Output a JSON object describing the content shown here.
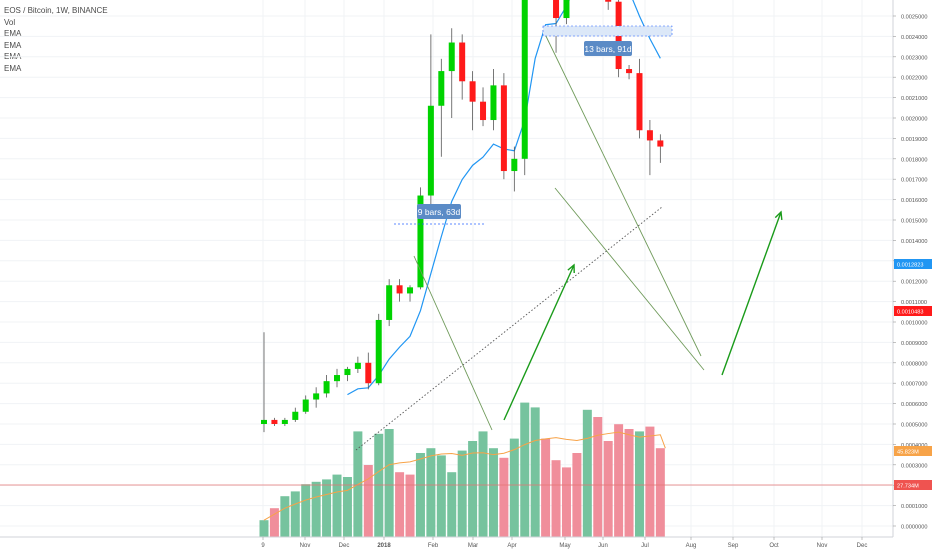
{
  "legend": {
    "title": "EOS / Bitcoin, 1W, BINANCE",
    "vol": "Vol",
    "ema": [
      "EMA",
      "EMA",
      "EMA",
      "EMA"
    ]
  },
  "colors": {
    "up": "#00d300",
    "down": "#ff1a1a",
    "vol_up": "#76c39e",
    "vol_down": "#f08e9b",
    "ema_blue": "#2196f3",
    "ema_orange": "#f7a348",
    "trend_green": "#1a9b1a",
    "trend_line": "#6f9a5a",
    "measure_blue": "#2962ff"
  },
  "axis": {
    "price_ticks": [
      "0.0025000",
      "0.0024000",
      "0.0023000",
      "0.0022000",
      "0.0021000",
      "0.0020000",
      "0.0019000",
      "0.0018000",
      "0.0017000",
      "0.0016000",
      "0.0015000",
      "0.0014000",
      "0.0013000",
      "0.0012000",
      "0.0011000",
      "0.0010000",
      "0.0009000",
      "0.0008000",
      "0.0007000",
      "0.0006000",
      "0.0005000",
      "0.0004000",
      "0.0003000",
      "0.0002000",
      "0.0001000",
      "0.0000000"
    ],
    "time_ticks": [
      "9",
      "Nov",
      "Dec",
      "2018",
      "Feb",
      "Mar",
      "Apr",
      "May",
      "Jun",
      "Jul",
      "Aug",
      "Sep",
      "Oct",
      "Nov",
      "Dec"
    ],
    "price_label_blue": "0.0012823",
    "price_label_red": "0.0010483",
    "vol_label_orange": "45.823M",
    "vol_label_red": "27.734M"
  },
  "annotations": {
    "measure_1": "9 bars, 63d",
    "measure_2": "13 bars, 91d"
  },
  "chart_data": {
    "type": "candlestick",
    "title": "EOS / Bitcoin, 1W, BINANCE",
    "candles": [
      {
        "o": 0.0005,
        "h": 0.00095,
        "l": 0.00046,
        "c": 0.00052
      },
      {
        "o": 0.00052,
        "h": 0.00053,
        "l": 0.00049,
        "c": 0.0005
      },
      {
        "o": 0.0005,
        "h": 0.00053,
        "l": 0.00049,
        "c": 0.00052
      },
      {
        "o": 0.00052,
        "h": 0.00058,
        "l": 0.00051,
        "c": 0.00056
      },
      {
        "o": 0.00056,
        "h": 0.00064,
        "l": 0.00055,
        "c": 0.00062
      },
      {
        "o": 0.00062,
        "h": 0.00068,
        "l": 0.00058,
        "c": 0.00065
      },
      {
        "o": 0.00065,
        "h": 0.00074,
        "l": 0.00063,
        "c": 0.00071
      },
      {
        "o": 0.00071,
        "h": 0.00077,
        "l": 0.00068,
        "c": 0.00074
      },
      {
        "o": 0.00074,
        "h": 0.00078,
        "l": 0.00071,
        "c": 0.00077
      },
      {
        "o": 0.00077,
        "h": 0.00083,
        "l": 0.00075,
        "c": 0.0008
      },
      {
        "o": 0.0008,
        "h": 0.00085,
        "l": 0.00067,
        "c": 0.0007
      },
      {
        "o": 0.0007,
        "h": 0.00104,
        "l": 0.00069,
        "c": 0.00101
      },
      {
        "o": 0.00101,
        "h": 0.00121,
        "l": 0.00098,
        "c": 0.00118
      },
      {
        "o": 0.00118,
        "h": 0.00121,
        "l": 0.0011,
        "c": 0.00114
      },
      {
        "o": 0.00114,
        "h": 0.00118,
        "l": 0.0011,
        "c": 0.00117
      },
      {
        "o": 0.00117,
        "h": 0.00166,
        "l": 0.00116,
        "c": 0.00162
      },
      {
        "o": 0.00162,
        "h": 0.00241,
        "l": 0.00152,
        "c": 0.00206
      },
      {
        "o": 0.00206,
        "h": 0.00229,
        "l": 0.00181,
        "c": 0.00223
      },
      {
        "o": 0.00223,
        "h": 0.00244,
        "l": 0.002,
        "c": 0.00237
      },
      {
        "o": 0.00237,
        "h": 0.00241,
        "l": 0.00209,
        "c": 0.00218
      },
      {
        "o": 0.00218,
        "h": 0.00223,
        "l": 0.00194,
        "c": 0.00208
      },
      {
        "o": 0.00208,
        "h": 0.00215,
        "l": 0.00196,
        "c": 0.00199
      },
      {
        "o": 0.00199,
        "h": 0.00224,
        "l": 0.00194,
        "c": 0.00216
      },
      {
        "o": 0.00216,
        "h": 0.00222,
        "l": 0.0017,
        "c": 0.00174
      },
      {
        "o": 0.00174,
        "h": 0.00186,
        "l": 0.00164,
        "c": 0.0018
      },
      {
        "o": 0.0018,
        "h": 0.00271,
        "l": 0.00172,
        "c": 0.00267
      },
      {
        "o": 0.00267,
        "h": 0.00373,
        "l": 0.00262,
        "c": 0.00365
      },
      {
        "o": 0.00365,
        "h": 0.00394,
        "l": 0.0031,
        "c": 0.0032
      },
      {
        "o": 0.0032,
        "h": 0.00326,
        "l": 0.00232,
        "c": 0.00249
      },
      {
        "o": 0.00249,
        "h": 0.00322,
        "l": 0.00246,
        "c": 0.00293
      },
      {
        "o": 0.00293,
        "h": 0.00331,
        "l": 0.00276,
        "c": 0.00318
      },
      {
        "o": 0.00318,
        "h": 0.00367,
        "l": 0.00305,
        "c": 0.00351
      },
      {
        "o": 0.00351,
        "h": 0.00354,
        "l": 0.00304,
        "c": 0.00313
      },
      {
        "o": 0.00313,
        "h": 0.00334,
        "l": 0.00253,
        "c": 0.00257
      },
      {
        "o": 0.00257,
        "h": 0.00266,
        "l": 0.0022,
        "c": 0.00224
      },
      {
        "o": 0.00224,
        "h": 0.00226,
        "l": 0.00219,
        "c": 0.00222
      },
      {
        "o": 0.00222,
        "h": 0.00229,
        "l": 0.0019,
        "c": 0.00194
      },
      {
        "o": 0.00194,
        "h": 0.00199,
        "l": 0.00172,
        "c": 0.00189
      },
      {
        "o": 0.00189,
        "h": 0.00192,
        "l": 0.00178,
        "c": 0.00186
      }
    ],
    "volume": [
      {
        "v": 7,
        "up": true
      },
      {
        "v": 12,
        "up": false
      },
      {
        "v": 17,
        "up": true
      },
      {
        "v": 19,
        "up": true
      },
      {
        "v": 22,
        "up": true
      },
      {
        "v": 23,
        "up": true
      },
      {
        "v": 24,
        "up": true
      },
      {
        "v": 26,
        "up": true
      },
      {
        "v": 25,
        "up": true
      },
      {
        "v": 44,
        "up": true
      },
      {
        "v": 30,
        "up": false
      },
      {
        "v": 43,
        "up": true
      },
      {
        "v": 45,
        "up": true
      },
      {
        "v": 27,
        "up": false
      },
      {
        "v": 26,
        "up": false
      },
      {
        "v": 35,
        "up": true
      },
      {
        "v": 37,
        "up": true
      },
      {
        "v": 34,
        "up": true
      },
      {
        "v": 27,
        "up": true
      },
      {
        "v": 36,
        "up": true
      },
      {
        "v": 40,
        "up": true
      },
      {
        "v": 44,
        "up": true
      },
      {
        "v": 37,
        "up": true
      },
      {
        "v": 33,
        "up": false
      },
      {
        "v": 41,
        "up": true
      },
      {
        "v": 56,
        "up": true
      },
      {
        "v": 54,
        "up": true
      },
      {
        "v": 41,
        "up": false
      },
      {
        "v": 32,
        "up": false
      },
      {
        "v": 29,
        "up": false
      },
      {
        "v": 35,
        "up": false
      },
      {
        "v": 53,
        "up": true
      },
      {
        "v": 50,
        "up": false
      },
      {
        "v": 40,
        "up": false
      },
      {
        "v": 47,
        "up": false
      },
      {
        "v": 45,
        "up": false
      },
      {
        "v": 44,
        "up": true
      },
      {
        "v": 46,
        "up": false
      },
      {
        "v": 37,
        "up": false
      }
    ]
  }
}
